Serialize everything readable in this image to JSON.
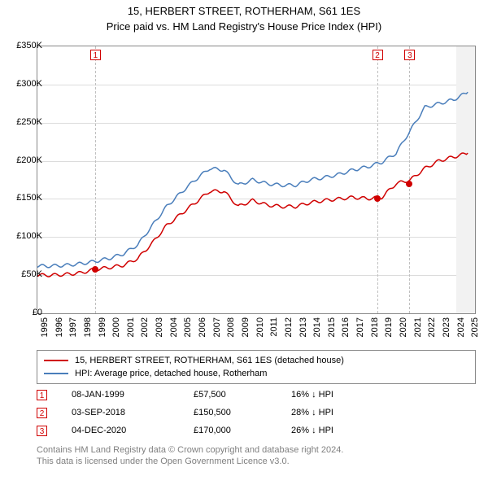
{
  "title": "15, HERBERT STREET, ROTHERHAM, S61 1ES",
  "subtitle": "Price paid vs. HM Land Registry's House Price Index (HPI)",
  "chart": {
    "type": "line",
    "background_color": "#ffffff",
    "grid_color": "#dcdcdc",
    "border_color": "#888888",
    "xlim": [
      1995,
      2025.5
    ],
    "ylim": [
      0,
      350000
    ],
    "ytick_step": 50000,
    "ytick_labels": [
      "£0",
      "£50K",
      "£100K",
      "£150K",
      "£200K",
      "£250K",
      "£300K",
      "£350K"
    ],
    "xtick_step": 1,
    "xtick_labels": [
      "1995",
      "1996",
      "1997",
      "1998",
      "1999",
      "2000",
      "2001",
      "2002",
      "2003",
      "2004",
      "2005",
      "2006",
      "2007",
      "2008",
      "2009",
      "2010",
      "2011",
      "2012",
      "2013",
      "2014",
      "2015",
      "2016",
      "2017",
      "2018",
      "2019",
      "2020",
      "2021",
      "2022",
      "2023",
      "2024",
      "2025"
    ],
    "title_fontsize": 13,
    "label_fontsize": 11,
    "series": [
      {
        "name": "15, HERBERT STREET, ROTHERHAM, S61 1ES (detached house)",
        "color": "#d00000",
        "line_width": 1.5,
        "data": [
          [
            1995,
            50000
          ],
          [
            1996,
            50000
          ],
          [
            1997,
            51000
          ],
          [
            1998,
            53000
          ],
          [
            1999,
            57500
          ],
          [
            2000,
            60000
          ],
          [
            2001,
            63000
          ],
          [
            2002,
            72000
          ],
          [
            2003,
            92000
          ],
          [
            2004,
            115000
          ],
          [
            2005,
            130000
          ],
          [
            2006,
            145000
          ],
          [
            2007,
            160000
          ],
          [
            2008,
            160000
          ],
          [
            2009,
            140000
          ],
          [
            2010,
            148000
          ],
          [
            2011,
            142000
          ],
          [
            2012,
            140000
          ],
          [
            2013,
            140000
          ],
          [
            2014,
            145000
          ],
          [
            2015,
            148000
          ],
          [
            2016,
            150000
          ],
          [
            2017,
            152000
          ],
          [
            2018,
            150500
          ],
          [
            2019,
            152000
          ],
          [
            2020,
            170000
          ],
          [
            2021,
            175000
          ],
          [
            2022,
            190000
          ],
          [
            2023,
            200000
          ],
          [
            2024,
            205000
          ],
          [
            2025,
            210000
          ]
        ]
      },
      {
        "name": "HPI: Average price, detached house, Rotherham",
        "color": "#4a7ebb",
        "line_width": 1.5,
        "data": [
          [
            1995,
            62000
          ],
          [
            1996,
            62000
          ],
          [
            1997,
            63000
          ],
          [
            1998,
            65000
          ],
          [
            1999,
            68000
          ],
          [
            2000,
            72000
          ],
          [
            2001,
            78000
          ],
          [
            2002,
            90000
          ],
          [
            2003,
            115000
          ],
          [
            2004,
            140000
          ],
          [
            2005,
            158000
          ],
          [
            2006,
            175000
          ],
          [
            2007,
            190000
          ],
          [
            2008,
            188000
          ],
          [
            2009,
            168000
          ],
          [
            2010,
            175000
          ],
          [
            2011,
            170000
          ],
          [
            2012,
            168000
          ],
          [
            2013,
            168000
          ],
          [
            2014,
            175000
          ],
          [
            2015,
            178000
          ],
          [
            2016,
            182000
          ],
          [
            2017,
            188000
          ],
          [
            2018,
            192000
          ],
          [
            2019,
            198000
          ],
          [
            2020,
            210000
          ],
          [
            2021,
            240000
          ],
          [
            2022,
            270000
          ],
          [
            2023,
            275000
          ],
          [
            2024,
            280000
          ],
          [
            2025,
            290000
          ]
        ]
      }
    ],
    "sale_markers": [
      {
        "n": "1",
        "year": 1999.02,
        "price": 57500
      },
      {
        "n": "2",
        "year": 2018.67,
        "price": 150500
      },
      {
        "n": "3",
        "year": 2020.93,
        "price": 170000
      }
    ],
    "box_marker_color": "#d00000",
    "dashed_line_color": "#c0c0c0"
  },
  "legend": {
    "items": [
      {
        "label": "15, HERBERT STREET, ROTHERHAM, S61 1ES (detached house)",
        "color": "#d00000"
      },
      {
        "label": "HPI: Average price, detached house, Rotherham",
        "color": "#4a7ebb"
      }
    ]
  },
  "sales": [
    {
      "n": "1",
      "date": "08-JAN-1999",
      "price": "£57,500",
      "diff": "16% ↓ HPI"
    },
    {
      "n": "2",
      "date": "03-SEP-2018",
      "price": "£150,500",
      "diff": "28% ↓ HPI"
    },
    {
      "n": "3",
      "date": "04-DEC-2020",
      "price": "£170,000",
      "diff": "26% ↓ HPI"
    }
  ],
  "footer": {
    "line1": "Contains HM Land Registry data © Crown copyright and database right 2024.",
    "line2": "This data is licensed under the Open Government Licence v3.0."
  }
}
